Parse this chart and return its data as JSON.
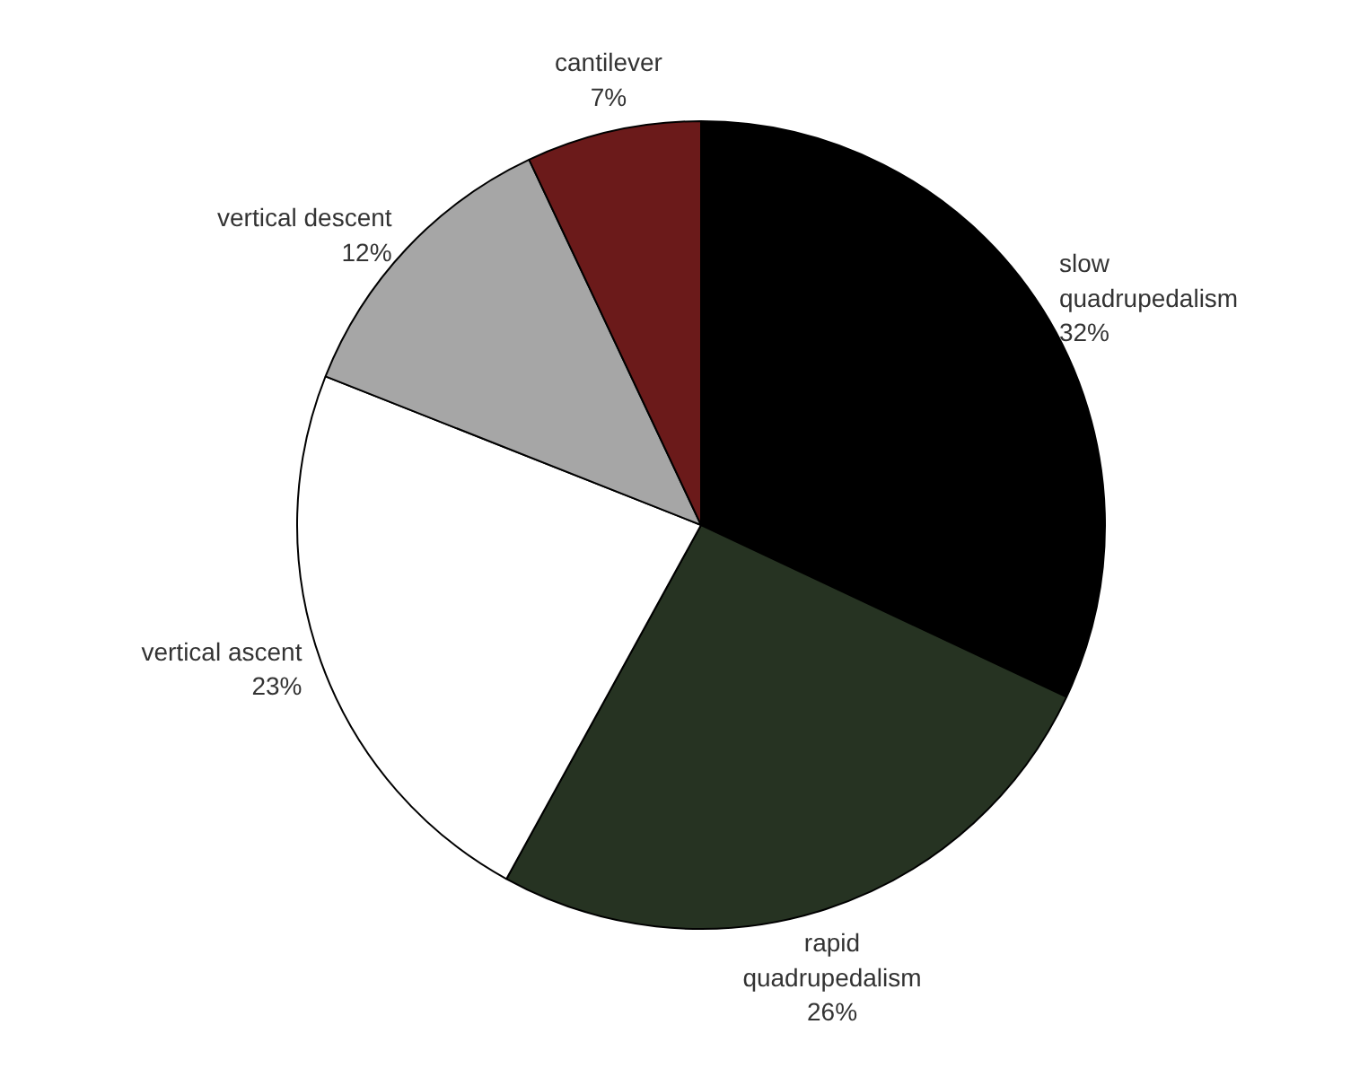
{
  "chart_data": {
    "type": "pie",
    "categories": [
      "slow quadrupedalism",
      "rapid quadrupedalism",
      "vertical ascent",
      "vertical descent",
      "cantilever"
    ],
    "values": [
      32,
      26,
      23,
      12,
      7
    ],
    "value_labels": [
      "32%",
      "26%",
      "23%",
      "12%",
      "7%"
    ],
    "colors": [
      "#000000",
      "#263322",
      "#ffffff",
      "#a6a6a6",
      "#6b1a1a"
    ]
  }
}
